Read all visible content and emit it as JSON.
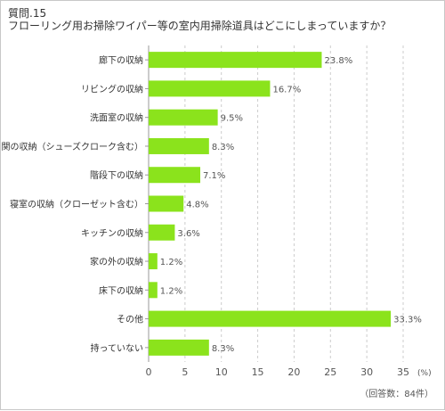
{
  "question": {
    "number": "質問.15",
    "text": "フローリング用お掃除ワイパー等の室内用掃除道具はどこにしまっていますか？"
  },
  "footnote": "（回答数：84件）",
  "chart_data": {
    "type": "bar",
    "orientation": "horizontal",
    "categories": [
      "廊下の収納",
      "リビングの収納",
      "洗面室の収納",
      "玄関の収納（シューズクローク含む）",
      "階段下の収納",
      "寝室の収納（クローゼット含む）",
      "キッチンの収納",
      "家の外の収納",
      "床下の収納",
      "その他",
      "持っていない"
    ],
    "values": [
      23.8,
      16.7,
      9.5,
      8.3,
      7.1,
      4.8,
      3.6,
      1.2,
      1.2,
      33.3,
      8.3
    ],
    "value_labels": [
      "23.8%",
      "16.7%",
      "9.5%",
      "8.3%",
      "7.1%",
      "4.8%",
      "3.6%",
      "1.2%",
      "1.2%",
      "33.3%",
      "8.3%"
    ],
    "xlim": [
      0,
      35
    ],
    "xticks": [
      0,
      5,
      10,
      15,
      20,
      25,
      30,
      35
    ],
    "unit_label": "(%)",
    "bar_color": "#8be31c",
    "grid": "vertical dashed"
  }
}
